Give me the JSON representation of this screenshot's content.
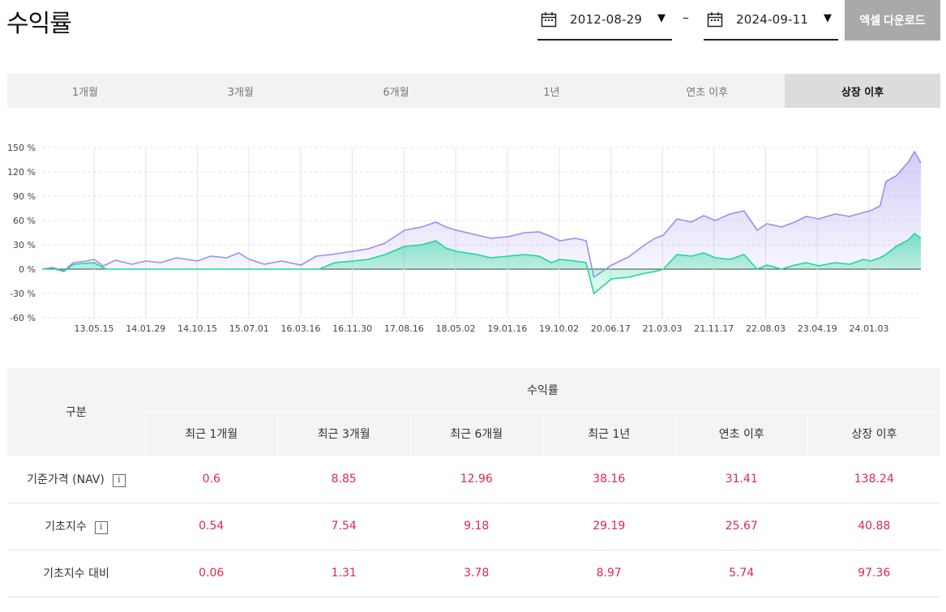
{
  "header": {
    "title": "수익률",
    "start_date": "2012-08-29",
    "end_date": "2024-09-11",
    "date_separator": "–",
    "caret": "▼",
    "excel_button": "엑셀 다운로드"
  },
  "period_tabs": [
    {
      "label": "1개월",
      "active": false
    },
    {
      "label": "3개월",
      "active": false
    },
    {
      "label": "6개월",
      "active": false
    },
    {
      "label": "1년",
      "active": false
    },
    {
      "label": "연초 이후",
      "active": false
    },
    {
      "label": "상장 이후",
      "active": true
    }
  ],
  "chart_data": {
    "type": "area",
    "ylim": [
      -60,
      150
    ],
    "yticks": [
      "150 %",
      "120 %",
      "90 %",
      "60 %",
      "30 %",
      "0 %",
      "-30 %",
      "-60 %"
    ],
    "x_tick_labels": [
      "13.05.15",
      "14.01.29",
      "14.10.15",
      "15.07.01",
      "16.03.16",
      "16.11.30",
      "17.08.16",
      "18.05.02",
      "19.01.16",
      "19.10.02",
      "20.06.17",
      "21.03.03",
      "21.11.17",
      "22.08.03",
      "23.04.19",
      "24.01.03"
    ],
    "x_start": "2012-08-29",
    "x_end": "2024-09-11",
    "colors": {
      "series1": "#9a8ef0",
      "series2": "#1fd69a"
    },
    "series": [
      {
        "points": [
          [
            "2012-08-29",
            0
          ],
          [
            "2012-10-20",
            2
          ],
          [
            "2012-12-15",
            -2
          ],
          [
            "2013-02-01",
            8
          ],
          [
            "2013-04-10",
            10
          ],
          [
            "2013-05-15",
            12
          ],
          [
            "2013-07-01",
            4
          ],
          [
            "2013-09-01",
            11
          ],
          [
            "2013-11-20",
            6
          ],
          [
            "2014-01-29",
            10
          ],
          [
            "2014-04-15",
            8
          ],
          [
            "2014-07-01",
            14
          ],
          [
            "2014-10-15",
            10
          ],
          [
            "2014-12-20",
            16
          ],
          [
            "2015-03-10",
            14
          ],
          [
            "2015-05-10",
            20
          ],
          [
            "2015-07-01",
            12
          ],
          [
            "2015-09-15",
            6
          ],
          [
            "2015-12-10",
            10
          ],
          [
            "2016-03-16",
            5
          ],
          [
            "2016-06-01",
            16
          ],
          [
            "2016-08-15",
            18
          ],
          [
            "2016-11-30",
            22
          ],
          [
            "2017-02-15",
            25
          ],
          [
            "2017-05-10",
            32
          ],
          [
            "2017-08-16",
            48
          ],
          [
            "2017-11-10",
            52
          ],
          [
            "2018-01-20",
            58
          ],
          [
            "2018-03-10",
            52
          ],
          [
            "2018-05-02",
            48
          ],
          [
            "2018-08-15",
            42
          ],
          [
            "2018-10-20",
            38
          ],
          [
            "2019-01-16",
            40
          ],
          [
            "2019-04-10",
            45
          ],
          [
            "2019-06-20",
            46
          ],
          [
            "2019-08-20",
            40
          ],
          [
            "2019-10-02",
            35
          ],
          [
            "2019-12-20",
            38
          ],
          [
            "2020-02-10",
            35
          ],
          [
            "2020-03-20",
            -10
          ],
          [
            "2020-06-17",
            5
          ],
          [
            "2020-09-10",
            15
          ],
          [
            "2020-11-30",
            30
          ],
          [
            "2021-01-20",
            38
          ],
          [
            "2021-03-03",
            42
          ],
          [
            "2021-05-10",
            62
          ],
          [
            "2021-07-20",
            58
          ],
          [
            "2021-09-20",
            66
          ],
          [
            "2021-11-17",
            60
          ],
          [
            "2022-01-30",
            68
          ],
          [
            "2022-04-10",
            72
          ],
          [
            "2022-06-15",
            48
          ],
          [
            "2022-08-03",
            56
          ],
          [
            "2022-10-15",
            52
          ],
          [
            "2022-12-20",
            58
          ],
          [
            "2023-02-15",
            65
          ],
          [
            "2023-04-19",
            62
          ],
          [
            "2023-07-10",
            68
          ],
          [
            "2023-09-20",
            65
          ],
          [
            "2023-11-30",
            70
          ],
          [
            "2024-01-03",
            72
          ],
          [
            "2024-02-20",
            78
          ],
          [
            "2024-03-20",
            108
          ],
          [
            "2024-05-10",
            115
          ],
          [
            "2024-07-10",
            132
          ],
          [
            "2024-08-10",
            145
          ],
          [
            "2024-09-11",
            131
          ]
        ]
      },
      {
        "points": [
          [
            "2012-08-29",
            0
          ],
          [
            "2012-10-20",
            1
          ],
          [
            "2012-12-15",
            -3
          ],
          [
            "2013-02-01",
            6
          ],
          [
            "2013-05-15",
            8
          ],
          [
            "2013-07-15",
            0
          ],
          [
            "2016-03-16",
            0
          ],
          [
            "2016-06-15",
            0
          ],
          [
            "2016-09-01",
            8
          ],
          [
            "2016-11-30",
            10
          ],
          [
            "2017-02-15",
            12
          ],
          [
            "2017-05-10",
            18
          ],
          [
            "2017-08-16",
            28
          ],
          [
            "2017-11-10",
            30
          ],
          [
            "2018-01-20",
            35
          ],
          [
            "2018-03-10",
            26
          ],
          [
            "2018-05-02",
            22
          ],
          [
            "2018-08-15",
            18
          ],
          [
            "2018-10-20",
            14
          ],
          [
            "2019-01-16",
            16
          ],
          [
            "2019-04-10",
            18
          ],
          [
            "2019-06-20",
            16
          ],
          [
            "2019-08-20",
            8
          ],
          [
            "2019-10-02",
            12
          ],
          [
            "2019-12-20",
            10
          ],
          [
            "2020-02-10",
            8
          ],
          [
            "2020-03-20",
            -30
          ],
          [
            "2020-06-17",
            -12
          ],
          [
            "2020-09-10",
            -10
          ],
          [
            "2020-11-30",
            -5
          ],
          [
            "2021-01-20",
            -3
          ],
          [
            "2021-03-03",
            0
          ],
          [
            "2021-05-10",
            18
          ],
          [
            "2021-07-20",
            16
          ],
          [
            "2021-09-20",
            20
          ],
          [
            "2021-11-17",
            14
          ],
          [
            "2022-01-30",
            12
          ],
          [
            "2022-04-10",
            18
          ],
          [
            "2022-06-15",
            0
          ],
          [
            "2022-08-03",
            5
          ],
          [
            "2022-10-15",
            0
          ],
          [
            "2022-12-20",
            5
          ],
          [
            "2023-02-15",
            8
          ],
          [
            "2023-04-19",
            4
          ],
          [
            "2023-07-10",
            8
          ],
          [
            "2023-09-20",
            6
          ],
          [
            "2023-11-30",
            12
          ],
          [
            "2024-01-03",
            10
          ],
          [
            "2024-02-20",
            14
          ],
          [
            "2024-03-20",
            18
          ],
          [
            "2024-05-10",
            28
          ],
          [
            "2024-07-10",
            36
          ],
          [
            "2024-08-10",
            44
          ],
          [
            "2024-09-11",
            38
          ]
        ]
      }
    ]
  },
  "table": {
    "row_header": "구분",
    "group_header": "수익률",
    "columns": [
      "최근 1개월",
      "최근 3개월",
      "최근 6개월",
      "최근 1년",
      "연초 이후",
      "상장 이후"
    ],
    "info_icon": "i",
    "rows": [
      {
        "label": "기준가격 (NAV)",
        "has_info": true,
        "values": [
          "0.6",
          "8.85",
          "12.96",
          "38.16",
          "31.41",
          "138.24"
        ]
      },
      {
        "label": "기초지수",
        "has_info": true,
        "values": [
          "0.54",
          "7.54",
          "9.18",
          "29.19",
          "25.67",
          "40.88"
        ]
      },
      {
        "label": "기초지수 대비",
        "has_info": false,
        "values": [
          "0.06",
          "1.31",
          "3.78",
          "8.97",
          "5.74",
          "97.36"
        ]
      }
    ]
  }
}
